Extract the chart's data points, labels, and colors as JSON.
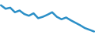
{
  "y_values": [
    85,
    75,
    78,
    65,
    70,
    60,
    55,
    62,
    48,
    52,
    58,
    65,
    52,
    45,
    50,
    42,
    35,
    28,
    20,
    15,
    10
  ],
  "line_color": "#2b8fc7",
  "line_width": 1.8,
  "background_color": "#ffffff",
  "figsize": [
    1.2,
    0.45
  ],
  "dpi": 100
}
